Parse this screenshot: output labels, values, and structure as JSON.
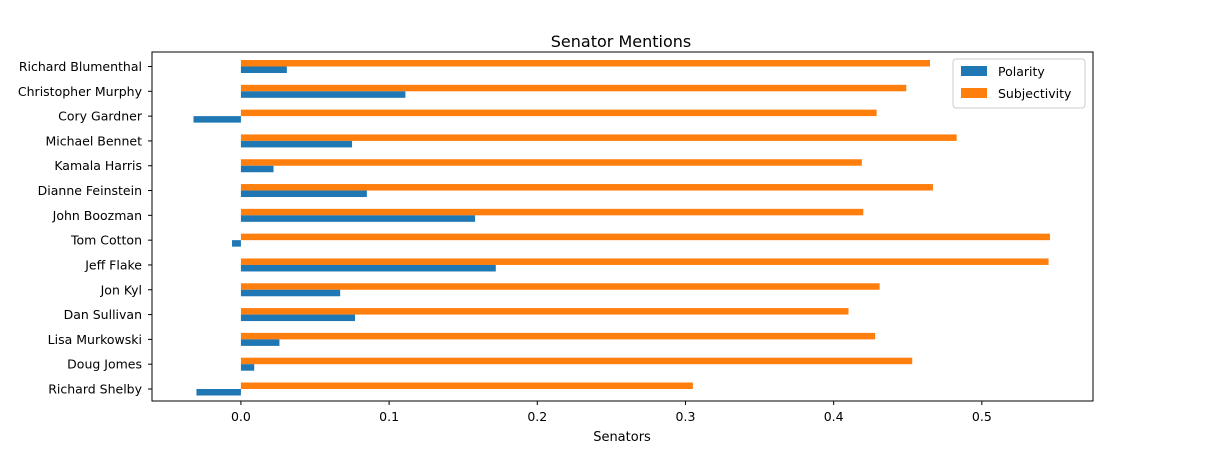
{
  "chart_data": {
    "type": "bar",
    "orientation": "horizontal",
    "title": "Senator Mentions",
    "xlabel": "Senators",
    "ylabel": "",
    "xlim": [
      -0.06,
      0.575
    ],
    "xticks": [
      0.0,
      0.1,
      0.2,
      0.3,
      0.4,
      0.5
    ],
    "xtick_labels": [
      "0.0",
      "0.1",
      "0.2",
      "0.3",
      "0.4",
      "0.5"
    ],
    "grid": false,
    "legend_position": "top-right",
    "categories": [
      "Richard Blumenthal",
      "Christopher Murphy",
      "Cory Gardner",
      "Michael Bennet",
      "Kamala Harris",
      "Dianne Feinstein",
      "John Boozman",
      "Tom Cotton",
      "Jeff Flake",
      "Jon Kyl",
      "Dan Sullivan",
      "Lisa Murkowski",
      "Doug Jomes",
      "Richard Shelby"
    ],
    "series": [
      {
        "name": "Polarity",
        "color": "#1f77b4",
        "values": [
          0.031,
          0.111,
          -0.032,
          0.075,
          0.022,
          0.085,
          0.158,
          -0.006,
          0.172,
          0.067,
          0.077,
          0.026,
          0.009,
          -0.03
        ]
      },
      {
        "name": "Subjectivity",
        "color": "#ff7f0e",
        "values": [
          0.465,
          0.449,
          0.429,
          0.483,
          0.419,
          0.467,
          0.42,
          0.546,
          0.545,
          0.431,
          0.41,
          0.428,
          0.453,
          0.305
        ]
      }
    ]
  }
}
